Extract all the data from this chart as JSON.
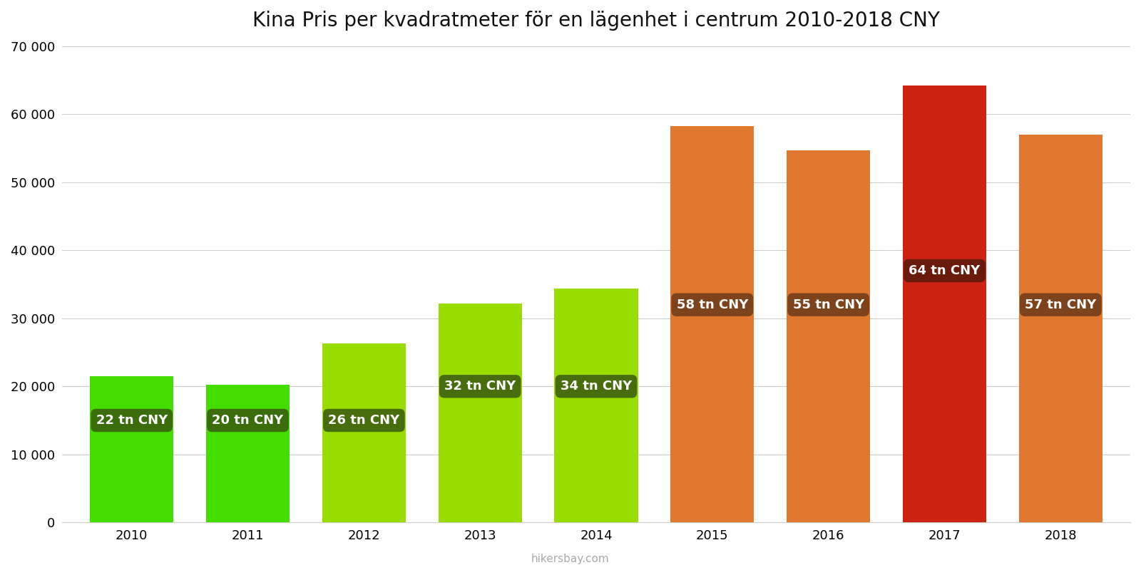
{
  "title": "Kina Pris per kvadratmeter för en lägenhet i centrum 2010-2018 CNY",
  "years": [
    2010,
    2011,
    2012,
    2013,
    2014,
    2015,
    2016,
    2017,
    2018
  ],
  "values": [
    21500,
    20200,
    26300,
    32200,
    34400,
    58200,
    54700,
    64200,
    57000
  ],
  "labels": [
    "22 tn CNY",
    "20 tn CNY",
    "26 tn CNY",
    "32 tn CNY",
    "34 tn CNY",
    "58 tn CNY",
    "55 tn CNY",
    "64 tn CNY",
    "57 tn CNY"
  ],
  "bar_colors": [
    "#44dd00",
    "#44dd00",
    "#99dd00",
    "#99dd00",
    "#99dd00",
    "#e07830",
    "#e07830",
    "#cc2211",
    "#e07830"
  ],
  "label_y_positions": [
    15000,
    15000,
    15000,
    20000,
    20000,
    32000,
    32000,
    37000,
    32000
  ],
  "ylim": [
    0,
    70000
  ],
  "yticks": [
    0,
    10000,
    20000,
    30000,
    40000,
    50000,
    60000,
    70000
  ],
  "background_color": "#ffffff",
  "label_box_color_green": "#3a5a10",
  "label_box_color_orange": "#6b3a1a",
  "label_box_color_red": "#5a1a0a",
  "label_text_color": "#ffffff",
  "watermark": "hikersbay.com",
  "title_fontsize": 20,
  "bar_width": 0.72
}
